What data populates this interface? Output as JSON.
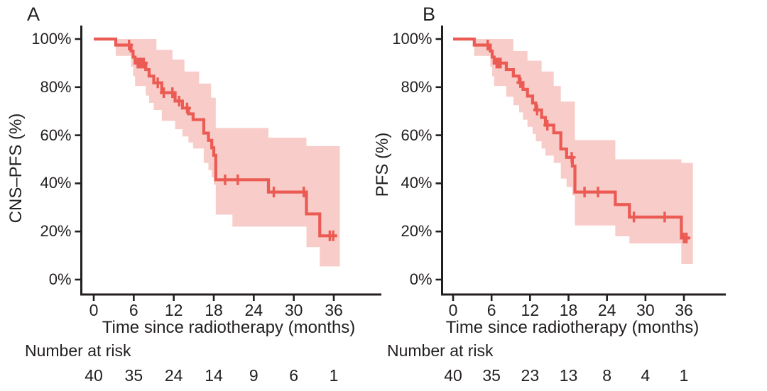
{
  "chart_data": {
    "type": "line",
    "subtype": "kaplan-meier-step",
    "description": "Two Kaplan-Meier survival curves with 95% confidence bands and number-at-risk tables",
    "colors": {
      "line": "#EB5B54",
      "band": "#F8CCC8",
      "axis": "#221E1F",
      "text": "#231F20",
      "background": "#FFFFFF"
    },
    "panels": [
      {
        "label": "A",
        "ylabel": "CNS–PFS (%)",
        "xlabel": "Time since radiotherapy (months)",
        "risk_label": "Number at risk",
        "xlim": [
          0,
          42
        ],
        "ylim": [
          0,
          100
        ],
        "grid": false,
        "x_ticks": [
          {
            "value": 0,
            "label": "0"
          },
          {
            "value": 6,
            "label": "6"
          },
          {
            "value": 12,
            "label": "12"
          },
          {
            "value": 18,
            "label": "18"
          },
          {
            "value": 24,
            "label": "24"
          },
          {
            "value": 30,
            "label": "30"
          },
          {
            "value": 36,
            "label": "36"
          }
        ],
        "y_ticks": [
          {
            "value": 100,
            "label": "100%"
          },
          {
            "value": 80,
            "label": "80%"
          },
          {
            "value": 60,
            "label": "60%"
          },
          {
            "value": 40,
            "label": "40%"
          },
          {
            "value": 20,
            "label": "20%"
          },
          {
            "value": 0,
            "label": "0%"
          }
        ],
        "number_at_risk": {
          "times": [
            0,
            6,
            12,
            18,
            24,
            30,
            36
          ],
          "values": [
            40,
            35,
            24,
            14,
            9,
            6,
            1
          ]
        },
        "steps": [
          [
            0,
            100
          ],
          [
            3.3,
            97.5
          ],
          [
            5.6,
            95
          ],
          [
            5.9,
            92.5
          ],
          [
            6.2,
            90
          ],
          [
            7.8,
            87.3
          ],
          [
            8.3,
            84.6
          ],
          [
            9.0,
            81.8
          ],
          [
            10.2,
            77.7
          ],
          [
            12.2,
            74.2
          ],
          [
            13.3,
            71.3
          ],
          [
            14.2,
            68.9
          ],
          [
            14.9,
            66.5
          ],
          [
            16.5,
            60.9
          ],
          [
            17.2,
            57.9
          ],
          [
            17.7,
            54.8
          ],
          [
            18.0,
            51.7
          ],
          [
            18.3,
            41.5
          ],
          [
            26.2,
            36.4
          ],
          [
            31.9,
            27.3
          ],
          [
            33.9,
            18.2
          ]
        ],
        "end_time": 36.5,
        "censors": [
          [
            5.3,
            97.5
          ],
          [
            6.6,
            90
          ],
          [
            6.9,
            90
          ],
          [
            7.2,
            90
          ],
          [
            7.5,
            90
          ],
          [
            9.6,
            81.8
          ],
          [
            10.5,
            77.7
          ],
          [
            11.8,
            77.7
          ],
          [
            12.8,
            74.2
          ],
          [
            14.0,
            71.3
          ],
          [
            19.7,
            41.5
          ],
          [
            21.6,
            41.5
          ],
          [
            27.0,
            36.4
          ],
          [
            31.5,
            36.4
          ],
          [
            35.4,
            18.2
          ],
          [
            35.9,
            18.2
          ]
        ],
        "band": {
          "upper": [
            [
              3.3,
              100
            ],
            [
              9.4,
              95.5
            ],
            [
              11.8,
              91.5
            ],
            [
              13.6,
              86.5
            ],
            [
              15.8,
              81.5
            ],
            [
              17.6,
              75.6
            ],
            [
              18.3,
              63
            ],
            [
              26.2,
              59
            ],
            [
              31.9,
              55.5
            ]
          ],
          "lower": [
            [
              3.3,
              93
            ],
            [
              5.6,
              88.5
            ],
            [
              5.9,
              84.5
            ],
            [
              6.2,
              80.5
            ],
            [
              7.8,
              76.5
            ],
            [
              8.3,
              73.5
            ],
            [
              9.0,
              70.5
            ],
            [
              10.2,
              66
            ],
            [
              12.2,
              62.5
            ],
            [
              13.3,
              59.5
            ],
            [
              14.2,
              57
            ],
            [
              14.9,
              54.5
            ],
            [
              16.5,
              48.5
            ],
            [
              17.2,
              45.5
            ],
            [
              17.7,
              42.5
            ],
            [
              18.0,
              39.5
            ],
            [
              18.3,
              27
            ],
            [
              20.8,
              22
            ],
            [
              31.9,
              13.5
            ],
            [
              33.9,
              5.5
            ]
          ],
          "end": 36.9
        }
      },
      {
        "label": "B",
        "ylabel": "PFS (%)",
        "xlabel": "Time since radiotherapy (months)",
        "risk_label": "Number at risk",
        "xlim": [
          0,
          42
        ],
        "ylim": [
          0,
          100
        ],
        "grid": false,
        "x_ticks": [
          {
            "value": 0,
            "label": "0"
          },
          {
            "value": 6,
            "label": "6"
          },
          {
            "value": 12,
            "label": "12"
          },
          {
            "value": 18,
            "label": "18"
          },
          {
            "value": 24,
            "label": "24"
          },
          {
            "value": 30,
            "label": "30"
          },
          {
            "value": 36,
            "label": "36"
          }
        ],
        "y_ticks": [
          {
            "value": 100,
            "label": "100%"
          },
          {
            "value": 80,
            "label": "80%"
          },
          {
            "value": 60,
            "label": "60%"
          },
          {
            "value": 40,
            "label": "40%"
          },
          {
            "value": 20,
            "label": "20%"
          },
          {
            "value": 0,
            "label": "0%"
          }
        ],
        "number_at_risk": {
          "times": [
            0,
            6,
            12,
            18,
            24,
            30,
            36
          ],
          "values": [
            40,
            35,
            23,
            13,
            8,
            4,
            1
          ]
        },
        "steps": [
          [
            0,
            100
          ],
          [
            3.3,
            97.5
          ],
          [
            5.8,
            95
          ],
          [
            6.1,
            92.5
          ],
          [
            6.4,
            90
          ],
          [
            8.3,
            87.3
          ],
          [
            9.4,
            84.6
          ],
          [
            10.3,
            81.9
          ],
          [
            10.9,
            79.1
          ],
          [
            11.6,
            76.3
          ],
          [
            12.4,
            73.4
          ],
          [
            12.9,
            70.5
          ],
          [
            13.8,
            67.4
          ],
          [
            14.4,
            64.2
          ],
          [
            15.7,
            61.0
          ],
          [
            16.8,
            54.3
          ],
          [
            17.7,
            50.8
          ],
          [
            18.6,
            47.2
          ],
          [
            19.0,
            36.4
          ],
          [
            25.3,
            31.2
          ],
          [
            27.5,
            26.0
          ],
          [
            35.6,
            17.3
          ]
        ],
        "end_time": 36.9,
        "censors": [
          [
            5.4,
            97.5
          ],
          [
            6.8,
            90
          ],
          [
            7.1,
            90
          ],
          [
            7.4,
            90
          ],
          [
            10.5,
            81.9
          ],
          [
            13.1,
            70.5
          ],
          [
            14.7,
            64.2
          ],
          [
            18.5,
            50.8
          ],
          [
            20.5,
            36.4
          ],
          [
            22.6,
            36.4
          ],
          [
            28.2,
            26.0
          ],
          [
            33.0,
            26.0
          ],
          [
            36.0,
            17.3
          ],
          [
            36.4,
            17.3
          ]
        ],
        "band": {
          "upper": [
            [
              3.3,
              100
            ],
            [
              9.4,
              95
            ],
            [
              11.6,
              91
            ],
            [
              13.8,
              86.5
            ],
            [
              15.7,
              80.5
            ],
            [
              16.8,
              74
            ],
            [
              19.0,
              58
            ],
            [
              25.3,
              50
            ],
            [
              35.6,
              48.5
            ]
          ],
          "lower": [
            [
              3.3,
              93
            ],
            [
              5.8,
              88.5
            ],
            [
              6.1,
              84.5
            ],
            [
              6.4,
              80.5
            ],
            [
              8.3,
              76
            ],
            [
              9.4,
              72.5
            ],
            [
              10.3,
              69.5
            ],
            [
              10.9,
              66.5
            ],
            [
              11.6,
              63.5
            ],
            [
              12.4,
              60.5
            ],
            [
              12.9,
              57.5
            ],
            [
              13.8,
              54.5
            ],
            [
              14.4,
              51.5
            ],
            [
              15.7,
              48.5
            ],
            [
              16.8,
              42
            ],
            [
              17.7,
              38.5
            ],
            [
              18.6,
              35
            ],
            [
              19.0,
              22.5
            ],
            [
              25.3,
              18
            ],
            [
              27.5,
              15
            ],
            [
              35.6,
              6.5
            ]
          ],
          "end": 37.4
        }
      }
    ]
  }
}
